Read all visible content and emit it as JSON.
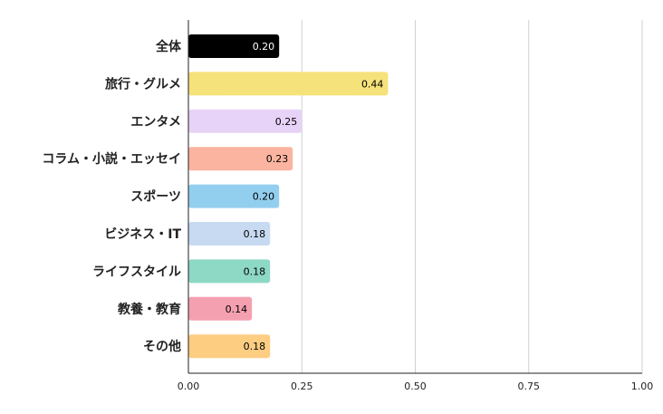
{
  "chart_data": {
    "type": "bar",
    "orientation": "horizontal",
    "categories": [
      "全体",
      "旅行・グルメ",
      "エンタメ",
      "コラム・小説・エッセイ",
      "スポーツ",
      "ビジネス・IT",
      "ライフスタイル",
      "教養・教育",
      "その他"
    ],
    "values": [
      0.2,
      0.44,
      0.25,
      0.23,
      0.2,
      0.18,
      0.18,
      0.14,
      0.18
    ],
    "value_labels": [
      "0.20",
      "0.44",
      "0.25",
      "0.23",
      "0.20",
      "0.18",
      "0.18",
      "0.14",
      "0.18"
    ],
    "colors": [
      "#000000",
      "#f6e27a",
      "#e7d3f7",
      "#fbb4a0",
      "#92cfee",
      "#c7daf2",
      "#8ed8c6",
      "#f5a0b0",
      "#fdcd82"
    ],
    "label_colors": [
      "#ffffff",
      "#000000",
      "#000000",
      "#000000",
      "#000000",
      "#000000",
      "#000000",
      "#000000",
      "#000000"
    ],
    "xlim": [
      0,
      1
    ],
    "xticks": [
      0,
      0.25,
      0.5,
      0.75,
      1.0
    ],
    "xtick_labels": [
      "0.00",
      "0.25",
      "0.50",
      "0.75",
      "1.00"
    ],
    "grid": true,
    "title": "",
    "xlabel": "",
    "ylabel": ""
  }
}
